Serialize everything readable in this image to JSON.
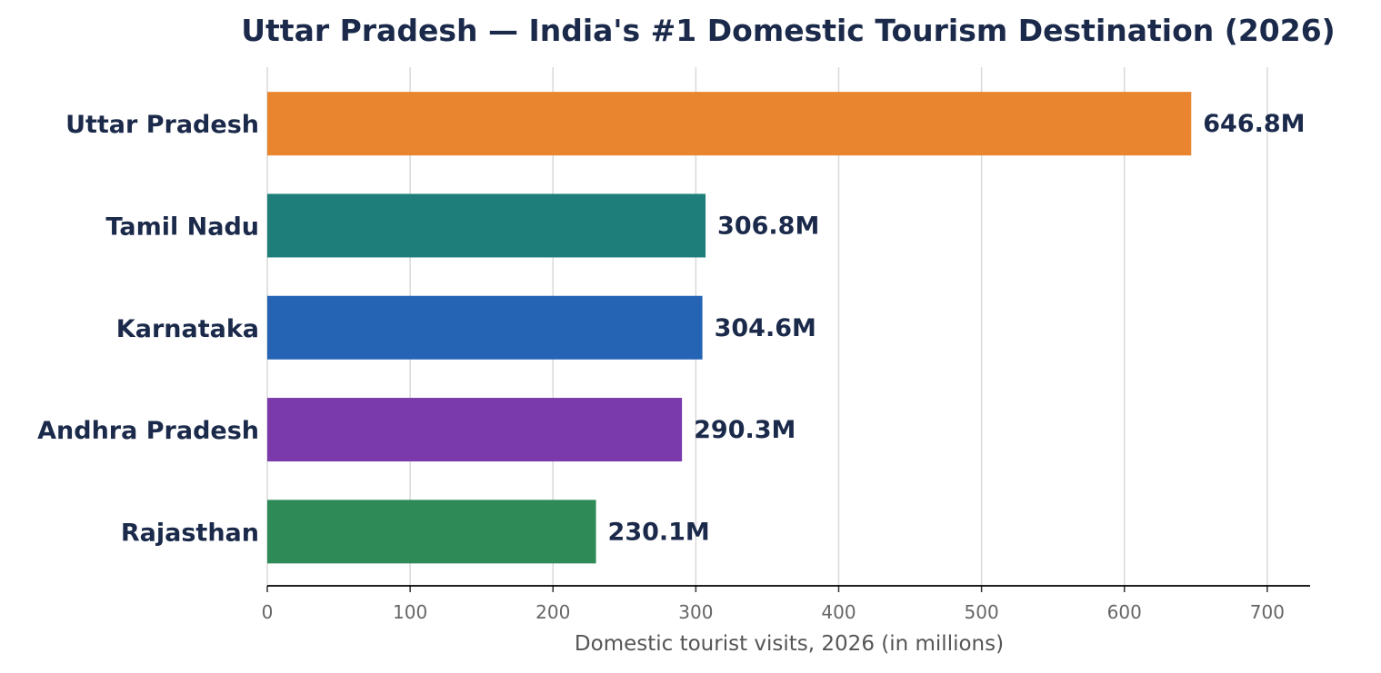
{
  "chart_data": {
    "type": "bar",
    "orientation": "horizontal",
    "title": "Uttar Pradesh — India's #1 Domestic Tourism Destination (2026)",
    "xlabel": "Domestic tourist visits, 2026 (in millions)",
    "ylabel": "",
    "xlim": [
      0,
      730
    ],
    "x_ticks": [
      0,
      100,
      200,
      300,
      400,
      500,
      600,
      700
    ],
    "grid": "vertical",
    "categories": [
      "Uttar Pradesh",
      "Tamil Nadu",
      "Karnataka",
      "Andhra Pradesh",
      "Rajasthan"
    ],
    "values": [
      646.8,
      306.8,
      304.6,
      290.3,
      230.1
    ],
    "value_labels": [
      "646.8M",
      "306.8M",
      "304.6M",
      "290.3M",
      "230.1M"
    ],
    "colors": [
      "#e8852e",
      "#1e7f7a",
      "#2563b5",
      "#7a3aab",
      "#2e8b57"
    ],
    "gridline_color": "#d9d9d9",
    "text_color": "#1b2a4a"
  }
}
